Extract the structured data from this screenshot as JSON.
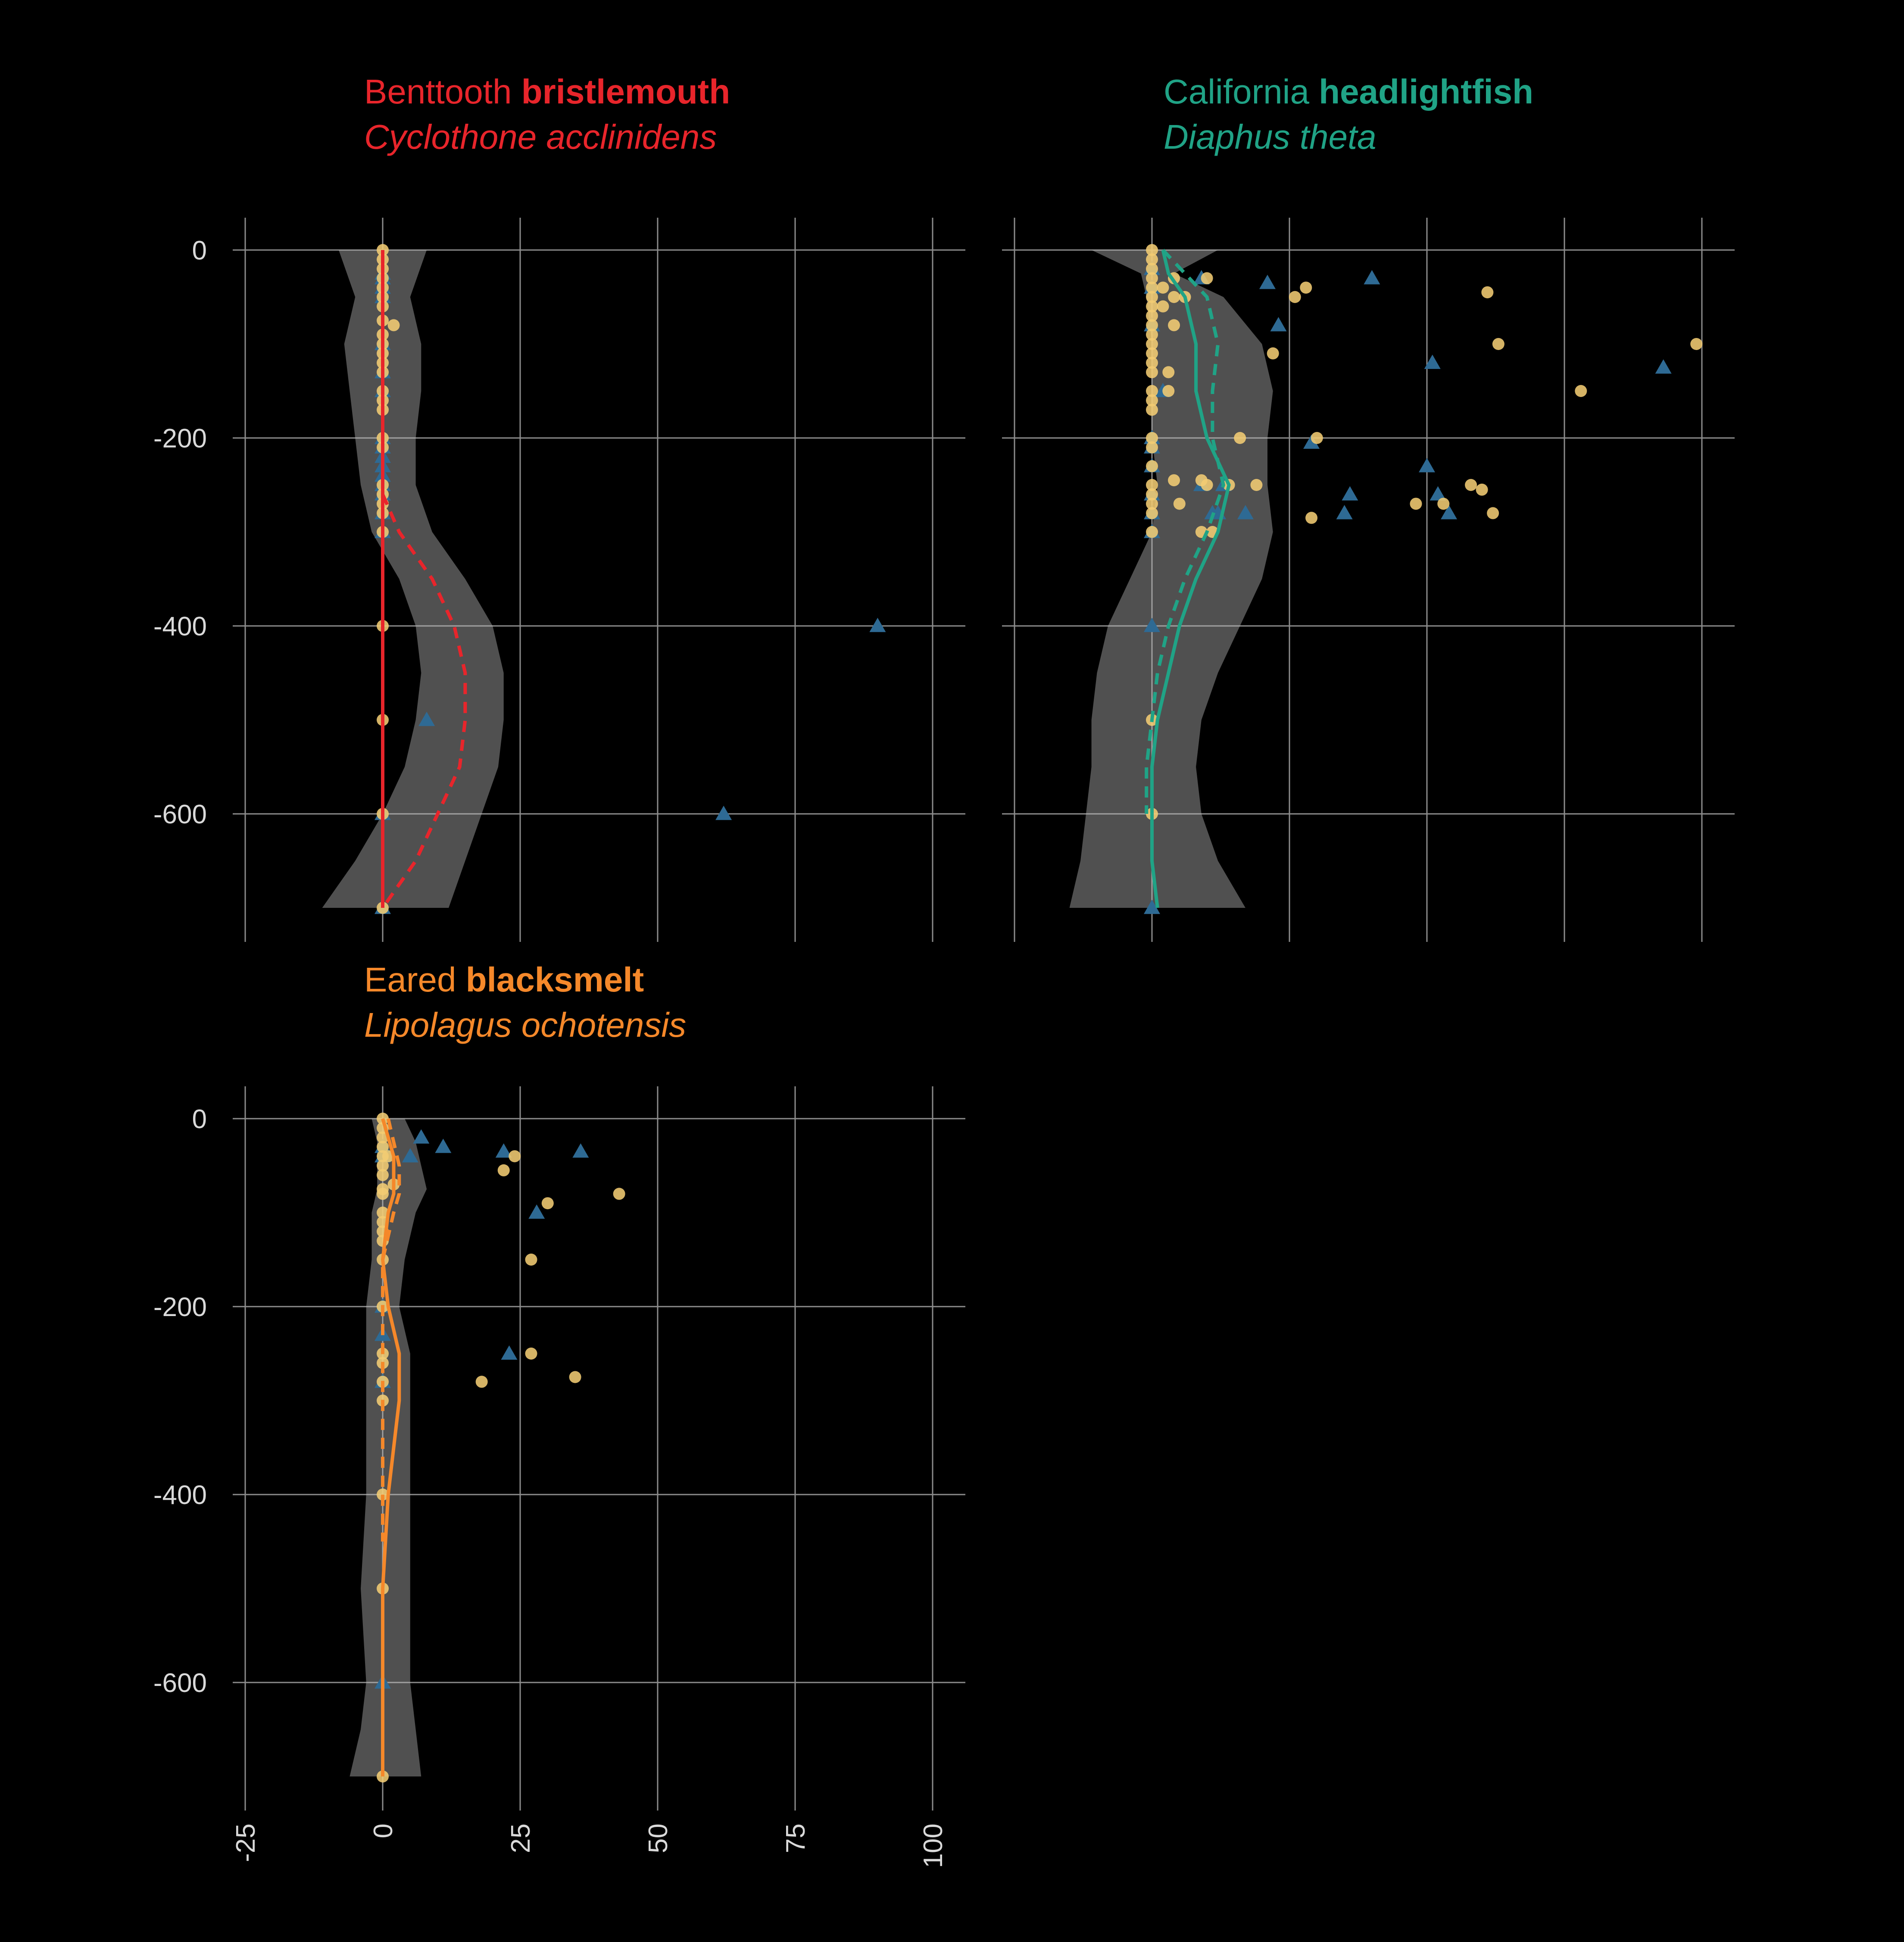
{
  "colors": {
    "background": "#000000",
    "grid": "#8c8c8c",
    "ribbon": "#bfbfbf",
    "tick_text": "#d9d9d9",
    "point_day": "#f2cc73",
    "point_night": "#2e6a94",
    "red": "#e8252b",
    "teal": "#20a386",
    "orange": "#f5882a"
  },
  "chart_data": [
    {
      "type": "scatter",
      "title": "Benttooth bristlemouth",
      "title_common": "Benttooth",
      "title_bold": "bristlemouth",
      "subtitle": "Cyclothone acclinidens",
      "color": "#e8252b",
      "xlim": [
        -30,
        105
      ],
      "ylim": [
        -735,
        35
      ],
      "x_ticks": [
        -25,
        0,
        25,
        50,
        75,
        100
      ],
      "x_tick_labels": [
        "-25",
        "0",
        "25",
        "50",
        "75",
        "100"
      ],
      "y_ticks": [
        0,
        -200,
        -400,
        -600
      ],
      "y_tick_labels": [
        "0",
        "-200",
        "-400",
        "-600"
      ],
      "show_y_labels": true,
      "show_x_labels": false,
      "ribbon": [
        [
          0,
          -8,
          8
        ],
        [
          -50,
          -5,
          5
        ],
        [
          -100,
          -7,
          7
        ],
        [
          -150,
          -6,
          7
        ],
        [
          -200,
          -5,
          6
        ],
        [
          -250,
          -4,
          6
        ],
        [
          -300,
          -2,
          9
        ],
        [
          -350,
          3,
          15
        ],
        [
          -400,
          6,
          20
        ],
        [
          -450,
          7,
          22
        ],
        [
          -500,
          6,
          22
        ],
        [
          -550,
          4,
          21
        ],
        [
          -600,
          0,
          18
        ],
        [
          -650,
          -5,
          15
        ],
        [
          -700,
          -11,
          12
        ]
      ],
      "solid_line": [
        [
          0,
          0
        ],
        [
          -100,
          0
        ],
        [
          -200,
          0
        ],
        [
          -300,
          0
        ],
        [
          -400,
          0
        ],
        [
          -500,
          0
        ],
        [
          -600,
          0
        ],
        [
          -700,
          0
        ]
      ],
      "dashed_line": [
        [
          -260,
          0
        ],
        [
          -300,
          3
        ],
        [
          -350,
          9
        ],
        [
          -400,
          13
        ],
        [
          -450,
          15
        ],
        [
          -500,
          15
        ],
        [
          -550,
          14
        ],
        [
          -600,
          10
        ],
        [
          -650,
          6
        ],
        [
          -700,
          0
        ]
      ],
      "day_points": [
        [
          0,
          0
        ],
        [
          0,
          -10
        ],
        [
          0,
          -20
        ],
        [
          0,
          -30
        ],
        [
          0,
          -40
        ],
        [
          0,
          -50
        ],
        [
          0,
          -60
        ],
        [
          0,
          -75
        ],
        [
          0,
          -90
        ],
        [
          0,
          -100
        ],
        [
          0,
          -110
        ],
        [
          0,
          -120
        ],
        [
          0,
          -130
        ],
        [
          0,
          -150
        ],
        [
          0,
          -160
        ],
        [
          0,
          -170
        ],
        [
          0,
          -200
        ],
        [
          0,
          -210
        ],
        [
          0,
          -250
        ],
        [
          0,
          -260
        ],
        [
          0,
          -270
        ],
        [
          0,
          -280
        ],
        [
          0,
          -300
        ],
        [
          0,
          -400
        ],
        [
          0,
          -500
        ],
        [
          0,
          -600
        ],
        [
          0,
          -700
        ],
        [
          2,
          -80
        ]
      ],
      "night_points": [
        [
          0,
          -25
        ],
        [
          0,
          -30
        ],
        [
          0,
          -40
        ],
        [
          0,
          -50
        ],
        [
          0,
          -100
        ],
        [
          0,
          -130
        ],
        [
          0,
          -150
        ],
        [
          0,
          -200
        ],
        [
          0,
          -210
        ],
        [
          0,
          -220
        ],
        [
          0,
          -230
        ],
        [
          0,
          -240
        ],
        [
          0,
          -250
        ],
        [
          0,
          -260
        ],
        [
          0,
          -280
        ],
        [
          0,
          -300
        ],
        [
          0,
          -600
        ],
        [
          0,
          -700
        ],
        [
          8,
          -500
        ],
        [
          62,
          -600
        ],
        [
          90,
          -400
        ]
      ]
    },
    {
      "type": "scatter",
      "title": "California headlightfish",
      "title_common": "California",
      "title_bold": "headlightfish",
      "subtitle": "Diaphus theta",
      "color": "#20a386",
      "xlim": [
        -30,
        105
      ],
      "ylim": [
        -735,
        35
      ],
      "x_ticks": [
        -25,
        0,
        25,
        50,
        75,
        100
      ],
      "x_tick_labels": [
        "-25",
        "0",
        "25",
        "50",
        "75",
        "100"
      ],
      "y_ticks": [
        0,
        -200,
        -400,
        -600
      ],
      "y_tick_labels": [
        "0",
        "-200",
        "-400",
        "-600"
      ],
      "show_y_labels": false,
      "show_x_labels": false,
      "ribbon": [
        [
          0,
          -11,
          12
        ],
        [
          -25,
          -2,
          4
        ],
        [
          -50,
          -1,
          13
        ],
        [
          -100,
          0,
          20
        ],
        [
          -150,
          0,
          22
        ],
        [
          -200,
          0,
          21
        ],
        [
          -250,
          1,
          21
        ],
        [
          -300,
          0,
          22
        ],
        [
          -350,
          -4,
          20
        ],
        [
          -400,
          -8,
          16
        ],
        [
          -450,
          -10,
          12
        ],
        [
          -500,
          -11,
          9
        ],
        [
          -550,
          -11,
          8
        ],
        [
          -600,
          -12,
          9
        ],
        [
          -650,
          -13,
          12
        ],
        [
          -700,
          -15,
          17
        ]
      ],
      "solid_line": [
        [
          0,
          2
        ],
        [
          -25,
          3
        ],
        [
          -50,
          6
        ],
        [
          -100,
          8
        ],
        [
          -150,
          8
        ],
        [
          -200,
          10
        ],
        [
          -250,
          14
        ],
        [
          -300,
          12
        ],
        [
          -350,
          8
        ],
        [
          -400,
          5
        ],
        [
          -450,
          3
        ],
        [
          -500,
          1
        ],
        [
          -550,
          0
        ],
        [
          -600,
          0
        ],
        [
          -650,
          0
        ],
        [
          -700,
          1
        ]
      ],
      "dashed_line": [
        [
          0,
          2
        ],
        [
          -50,
          10
        ],
        [
          -100,
          12
        ],
        [
          -150,
          11
        ],
        [
          -200,
          11
        ],
        [
          -250,
          13
        ],
        [
          -300,
          10
        ],
        [
          -350,
          6
        ],
        [
          -400,
          3
        ],
        [
          -450,
          1
        ],
        [
          -500,
          0
        ],
        [
          -550,
          -1
        ],
        [
          -600,
          -1
        ]
      ],
      "day_points": [
        [
          0,
          0
        ],
        [
          0,
          -10
        ],
        [
          0,
          -20
        ],
        [
          0,
          -30
        ],
        [
          0,
          -40
        ],
        [
          0,
          -50
        ],
        [
          0,
          -60
        ],
        [
          0,
          -70
        ],
        [
          0,
          -80
        ],
        [
          0,
          -90
        ],
        [
          0,
          -100
        ],
        [
          0,
          -110
        ],
        [
          0,
          -120
        ],
        [
          0,
          -130
        ],
        [
          0,
          -150
        ],
        [
          0,
          -160
        ],
        [
          0,
          -170
        ],
        [
          0,
          -200
        ],
        [
          0,
          -210
        ],
        [
          0,
          -230
        ],
        [
          0,
          -250
        ],
        [
          0,
          -260
        ],
        [
          0,
          -270
        ],
        [
          0,
          -280
        ],
        [
          0,
          -300
        ],
        [
          0,
          -500
        ],
        [
          0,
          -600
        ],
        [
          2,
          -40
        ],
        [
          2,
          -60
        ],
        [
          3,
          -130
        ],
        [
          3,
          -150
        ],
        [
          4,
          -30
        ],
        [
          4,
          -50
        ],
        [
          4,
          -80
        ],
        [
          4,
          -245
        ],
        [
          5,
          -270
        ],
        [
          6,
          -50
        ],
        [
          9,
          -300
        ],
        [
          9,
          -245
        ],
        [
          10,
          -30
        ],
        [
          10,
          -250
        ],
        [
          11,
          -300
        ],
        [
          14,
          -250
        ],
        [
          16,
          -200
        ],
        [
          19,
          -250
        ],
        [
          22,
          -110
        ],
        [
          26,
          -50
        ],
        [
          28,
          -40
        ],
        [
          29,
          -285
        ],
        [
          30,
          -200
        ],
        [
          48,
          -270
        ],
        [
          53,
          -270
        ],
        [
          58,
          -250
        ],
        [
          60,
          -255
        ],
        [
          61,
          -45
        ],
        [
          62,
          -280
        ],
        [
          63,
          -100
        ],
        [
          78,
          -150
        ],
        [
          99,
          -100
        ]
      ],
      "night_points": [
        [
          0,
          -20
        ],
        [
          0,
          -40
        ],
        [
          0,
          -80
        ],
        [
          0,
          -200
        ],
        [
          0,
          -210
        ],
        [
          0,
          -230
        ],
        [
          0,
          -260
        ],
        [
          0,
          -280
        ],
        [
          0,
          -300
        ],
        [
          0,
          -400
        ],
        [
          0,
          -700
        ],
        [
          2,
          -150
        ],
        [
          9,
          -30
        ],
        [
          9,
          -250
        ],
        [
          11,
          -280
        ],
        [
          12,
          -280
        ],
        [
          13,
          -250
        ],
        [
          17,
          -280
        ],
        [
          21,
          -35
        ],
        [
          23,
          -80
        ],
        [
          29,
          -205
        ],
        [
          35,
          -280
        ],
        [
          36,
          -260
        ],
        [
          40,
          -30
        ],
        [
          50,
          -230
        ],
        [
          51,
          -120
        ],
        [
          52,
          -260
        ],
        [
          54,
          -280
        ],
        [
          93,
          -125
        ]
      ]
    },
    {
      "type": "scatter",
      "title": "Eared blacksmelt",
      "title_common": "Eared",
      "title_bold": "blacksmelt",
      "subtitle": "Lipolagus ochotensis",
      "color": "#f5882a",
      "xlim": [
        -30,
        105
      ],
      "ylim": [
        -735,
        35
      ],
      "x_ticks": [
        -25,
        0,
        25,
        50,
        75,
        100
      ],
      "x_tick_labels": [
        "-25",
        "0",
        "25",
        "50",
        "75",
        "100"
      ],
      "y_ticks": [
        0,
        -200,
        -400,
        -600
      ],
      "y_tick_labels": [
        "0",
        "-200",
        "-400",
        "-600"
      ],
      "show_y_labels": true,
      "show_x_labels": true,
      "ribbon": [
        [
          0,
          -2,
          4
        ],
        [
          -25,
          -1,
          6
        ],
        [
          -50,
          -1,
          7
        ],
        [
          -75,
          -1,
          8
        ],
        [
          -100,
          -2,
          6
        ],
        [
          -150,
          -2,
          4
        ],
        [
          -200,
          -3,
          3
        ],
        [
          -250,
          -3,
          5
        ],
        [
          -300,
          -3,
          5
        ],
        [
          -400,
          -3,
          5
        ],
        [
          -500,
          -4,
          5
        ],
        [
          -600,
          -3,
          5
        ],
        [
          -650,
          -4,
          6
        ],
        [
          -700,
          -6,
          7
        ]
      ],
      "solid_line": [
        [
          0,
          0
        ],
        [
          -20,
          1
        ],
        [
          -40,
          2
        ],
        [
          -60,
          2
        ],
        [
          -80,
          2
        ],
        [
          -100,
          1
        ],
        [
          -150,
          0
        ],
        [
          -200,
          1
        ],
        [
          -250,
          3
        ],
        [
          -300,
          3
        ],
        [
          -350,
          2
        ],
        [
          -400,
          1
        ],
        [
          -500,
          0
        ],
        [
          -600,
          0
        ],
        [
          -700,
          0
        ]
      ],
      "dashed_line": [
        [
          0,
          1
        ],
        [
          -25,
          2
        ],
        [
          -50,
          3
        ],
        [
          -80,
          3
        ],
        [
          -100,
          2
        ],
        [
          -150,
          0
        ],
        [
          -200,
          0
        ],
        [
          -250,
          0
        ],
        [
          -300,
          0
        ],
        [
          -350,
          0
        ],
        [
          -400,
          0
        ],
        [
          -450,
          0
        ]
      ],
      "day_points": [
        [
          0,
          0
        ],
        [
          0,
          -10
        ],
        [
          0,
          -20
        ],
        [
          0,
          -30
        ],
        [
          0,
          -40
        ],
        [
          0,
          -50
        ],
        [
          0,
          -60
        ],
        [
          0,
          -75
        ],
        [
          0,
          -80
        ],
        [
          0,
          -100
        ],
        [
          0,
          -110
        ],
        [
          0,
          -120
        ],
        [
          0,
          -130
        ],
        [
          0,
          -150
        ],
        [
          0,
          -200
        ],
        [
          0,
          -250
        ],
        [
          0,
          -260
        ],
        [
          0,
          -280
        ],
        [
          0,
          -300
        ],
        [
          0,
          -400
        ],
        [
          0,
          -500
        ],
        [
          0,
          -700
        ],
        [
          1,
          -40
        ],
        [
          2,
          -70
        ],
        [
          18,
          -280
        ],
        [
          22,
          -55
        ],
        [
          24,
          -40
        ],
        [
          27,
          -150
        ],
        [
          27,
          -250
        ],
        [
          30,
          -90
        ],
        [
          35,
          -275
        ],
        [
          43,
          -80
        ]
      ],
      "night_points": [
        [
          0,
          -30
        ],
        [
          0,
          -40
        ],
        [
          0,
          -200
        ],
        [
          0,
          -230
        ],
        [
          0,
          -280
        ],
        [
          0,
          -600
        ],
        [
          5,
          -40
        ],
        [
          7,
          -20
        ],
        [
          11,
          -30
        ],
        [
          22,
          -35
        ],
        [
          23,
          -250
        ],
        [
          28,
          -100
        ],
        [
          36,
          -35
        ]
      ]
    }
  ]
}
